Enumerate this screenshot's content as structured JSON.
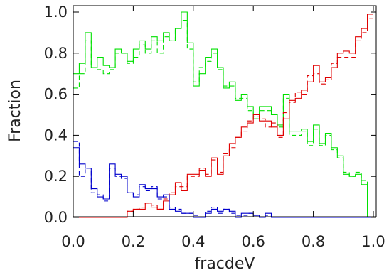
{
  "chart_data": {
    "type": "line",
    "title": "",
    "xlabel": "fracdeV",
    "ylabel": "Fraction",
    "xlim": [
      0.0,
      1.0
    ],
    "ylim": [
      0.0,
      1.0
    ],
    "xticks": [
      "0.0",
      "0.2",
      "0.4",
      "0.6",
      "0.8",
      "1.0"
    ],
    "yticks": [
      "0.0",
      "0.2",
      "0.4",
      "0.6",
      "0.8",
      "1.0"
    ],
    "bin_width": 0.02,
    "x_bin_starts": [
      0.0,
      0.02,
      0.04,
      0.06,
      0.08,
      0.1,
      0.12,
      0.14,
      0.16,
      0.18,
      0.2,
      0.22,
      0.24,
      0.26,
      0.28,
      0.3,
      0.32,
      0.34,
      0.36,
      0.38,
      0.4,
      0.42,
      0.44,
      0.46,
      0.48,
      0.5,
      0.52,
      0.54,
      0.56,
      0.58,
      0.6,
      0.62,
      0.64,
      0.66,
      0.68,
      0.7,
      0.72,
      0.74,
      0.76,
      0.78,
      0.8,
      0.82,
      0.84,
      0.86,
      0.88,
      0.9,
      0.92,
      0.94,
      0.96,
      0.98
    ],
    "grid": false,
    "legend": "none",
    "series": [
      {
        "color": "#00e000",
        "dash": "solid",
        "values": [
          0.7,
          0.75,
          0.9,
          0.73,
          0.78,
          0.74,
          0.73,
          0.82,
          0.8,
          0.76,
          0.82,
          0.86,
          0.82,
          0.88,
          0.86,
          0.9,
          0.86,
          0.92,
          1.0,
          0.85,
          0.64,
          0.7,
          0.78,
          0.82,
          0.73,
          0.63,
          0.66,
          0.57,
          0.6,
          0.54,
          0.48,
          0.54,
          0.54,
          0.5,
          0.45,
          0.6,
          0.42,
          0.42,
          0.43,
          0.37,
          0.45,
          0.36,
          0.41,
          0.34,
          0.3,
          0.21,
          0.2,
          0.21,
          0.16,
          0.0
        ]
      },
      {
        "color": "#00e000",
        "dash": "dashed",
        "values": [
          0.63,
          0.7,
          0.86,
          0.73,
          0.72,
          0.7,
          0.72,
          0.8,
          0.8,
          0.75,
          0.78,
          0.84,
          0.8,
          0.86,
          0.8,
          0.88,
          0.86,
          0.92,
          0.96,
          0.82,
          0.66,
          0.73,
          0.76,
          0.8,
          0.72,
          0.64,
          0.64,
          0.58,
          0.58,
          0.52,
          0.48,
          0.52,
          0.52,
          0.5,
          0.44,
          0.58,
          0.4,
          0.4,
          0.42,
          0.35,
          0.43,
          0.35,
          0.4,
          0.33,
          0.29,
          0.22,
          0.2,
          0.22,
          0.18,
          0.0
        ]
      },
      {
        "color": "#e00000",
        "dash": "solid",
        "values": [
          0.0,
          0.0,
          0.0,
          0.0,
          0.0,
          0.0,
          0.0,
          0.0,
          0.0,
          0.03,
          0.04,
          0.04,
          0.07,
          0.05,
          0.04,
          0.08,
          0.11,
          0.17,
          0.13,
          0.21,
          0.21,
          0.23,
          0.2,
          0.29,
          0.21,
          0.3,
          0.36,
          0.39,
          0.44,
          0.46,
          0.5,
          0.47,
          0.47,
          0.44,
          0.4,
          0.48,
          0.57,
          0.58,
          0.62,
          0.66,
          0.74,
          0.66,
          0.68,
          0.73,
          0.8,
          0.81,
          0.8,
          0.88,
          0.92,
          0.99
        ]
      },
      {
        "color": "#e00000",
        "dash": "dashed",
        "values": [
          0.0,
          0.0,
          0.0,
          0.0,
          0.0,
          0.0,
          0.0,
          0.0,
          0.0,
          0.03,
          0.04,
          0.05,
          0.07,
          0.06,
          0.04,
          0.09,
          0.12,
          0.15,
          0.15,
          0.2,
          0.2,
          0.24,
          0.21,
          0.28,
          0.22,
          0.31,
          0.34,
          0.39,
          0.42,
          0.47,
          0.49,
          0.48,
          0.44,
          0.46,
          0.39,
          0.51,
          0.56,
          0.61,
          0.6,
          0.69,
          0.7,
          0.65,
          0.67,
          0.75,
          0.78,
          0.78,
          0.78,
          0.86,
          0.9,
          0.97
        ]
      },
      {
        "color": "#0000cc",
        "dash": "solid",
        "values": [
          0.34,
          0.26,
          0.24,
          0.14,
          0.1,
          0.09,
          0.26,
          0.21,
          0.2,
          0.12,
          0.1,
          0.16,
          0.14,
          0.14,
          0.1,
          0.11,
          0.04,
          0.03,
          0.02,
          0.02,
          0.0,
          0.0,
          0.02,
          0.04,
          0.03,
          0.04,
          0.03,
          0.0,
          0.02,
          0.02,
          0.01,
          0.0,
          0.02,
          0.0,
          0.0,
          0.0,
          0.0,
          0.0,
          0.0,
          0.0,
          0.0,
          0.0,
          0.0,
          0.0,
          0.0,
          0.0,
          0.0,
          0.0,
          0.0,
          0.0
        ]
      },
      {
        "color": "#0000cc",
        "dash": "dashed",
        "values": [
          0.37,
          0.2,
          0.24,
          0.12,
          0.11,
          0.08,
          0.24,
          0.2,
          0.19,
          0.12,
          0.11,
          0.15,
          0.13,
          0.15,
          0.09,
          0.1,
          0.05,
          0.04,
          0.02,
          0.02,
          0.01,
          0.0,
          0.03,
          0.05,
          0.02,
          0.04,
          0.02,
          0.01,
          0.01,
          0.02,
          0.01,
          0.0,
          0.01,
          0.0,
          0.0,
          0.0,
          0.0,
          0.0,
          0.0,
          0.0,
          0.0,
          0.0,
          0.0,
          0.0,
          0.0,
          0.0,
          0.0,
          0.0,
          0.0,
          0.0
        ]
      }
    ]
  }
}
